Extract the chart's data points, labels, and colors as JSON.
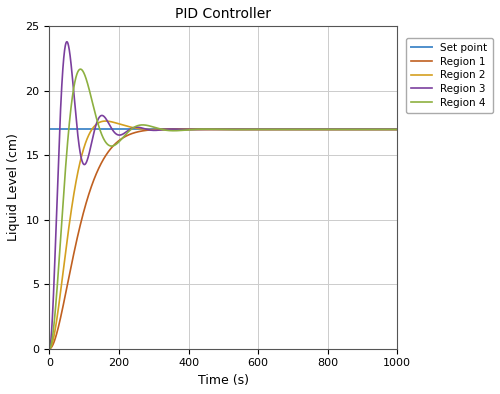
{
  "title": "PID Controller",
  "xlabel": "Time (s)",
  "ylabel": "Liquid Level (cm)",
  "xlim": [
    0,
    1000
  ],
  "ylim": [
    0,
    25
  ],
  "xticks": [
    0,
    200,
    400,
    600,
    800,
    1000
  ],
  "yticks": [
    0,
    5,
    10,
    15,
    20,
    25
  ],
  "setpoint": 17,
  "colors": {
    "setpoint": "#4F8FCC",
    "region1": "#C06020",
    "region2": "#D4A020",
    "region3": "#7B3F9E",
    "region4": "#8DB040"
  },
  "legend_labels": [
    "Set point",
    "Region 1",
    "Region 2",
    "Region 3",
    "Region 4"
  ],
  "grid_color": "#CCCCCC",
  "background": "#FFFFFF"
}
